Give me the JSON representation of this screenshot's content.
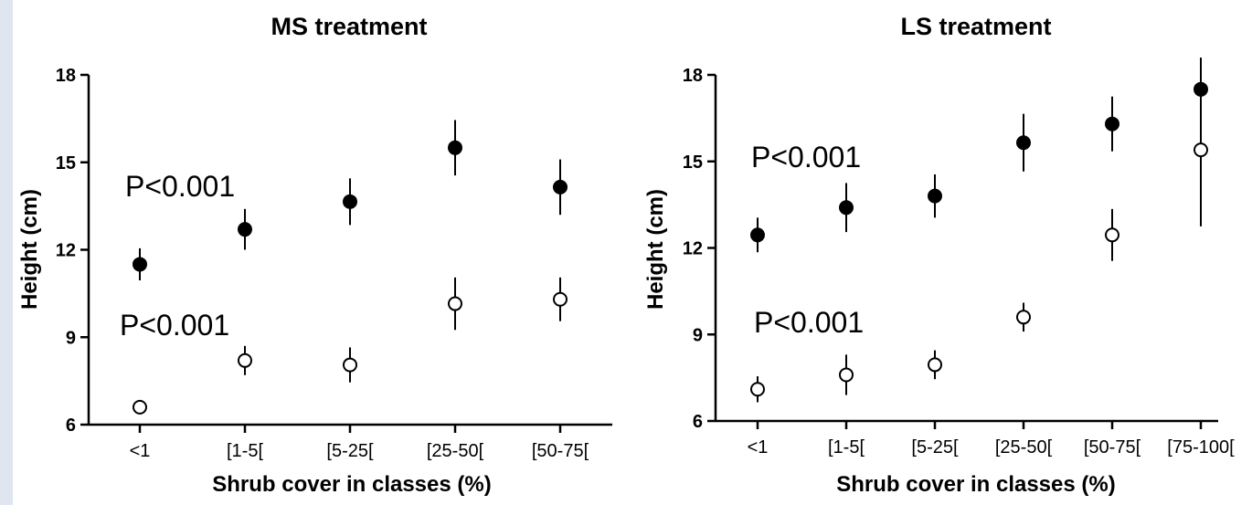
{
  "chart_data": [
    {
      "type": "scatter",
      "title": "MS treatment",
      "xlabel": "Shrub cover in classes (%)",
      "ylabel": "Height (cm)",
      "ylim": [
        6,
        18
      ],
      "yticks": [
        "6",
        "9",
        "12",
        "15",
        "18"
      ],
      "categories": [
        "<1",
        "[1-5[",
        "[5-25[",
        "[25-50[",
        "[50-75["
      ],
      "series": [
        {
          "marker": "filled",
          "values": [
            11.5,
            12.7,
            13.65,
            15.5,
            14.15
          ],
          "errors": [
            0.55,
            0.7,
            0.8,
            0.95,
            0.95
          ]
        },
        {
          "marker": "open",
          "values": [
            6.6,
            8.2,
            8.05,
            10.15,
            10.3
          ],
          "errors": [
            0,
            0.5,
            0.6,
            0.9,
            0.75
          ]
        }
      ],
      "annotations": [
        "P<0.001",
        "P<0.001"
      ]
    },
    {
      "type": "scatter",
      "title": "LS treatment",
      "xlabel": "Shrub cover in classes (%)",
      "ylabel": "Height (cm)",
      "ylim": [
        6,
        18
      ],
      "yticks": [
        "6",
        "9",
        "12",
        "15",
        "18"
      ],
      "categories": [
        "<1",
        "[1-5[",
        "[5-25[",
        "[25-50[",
        "[50-75[",
        "[75-100["
      ],
      "series": [
        {
          "marker": "filled",
          "values": [
            12.45,
            13.4,
            13.8,
            15.65,
            16.3,
            17.5
          ],
          "errors": [
            0.6,
            0.85,
            0.75,
            1.0,
            0.95,
            1.1
          ]
        },
        {
          "marker": "open",
          "values": [
            7.1,
            7.6,
            7.95,
            9.6,
            12.45,
            15.4
          ],
          "errors": [
            0.45,
            0.7,
            0.5,
            0.5,
            0.9,
            2.65
          ]
        }
      ],
      "annotations": [
        "P<0.001",
        "P<0.001"
      ]
    }
  ],
  "colors": {
    "marker": "#000000",
    "open_fill": "#ffffff",
    "axis": "#000000",
    "side_strip": "#dfe6f0"
  }
}
